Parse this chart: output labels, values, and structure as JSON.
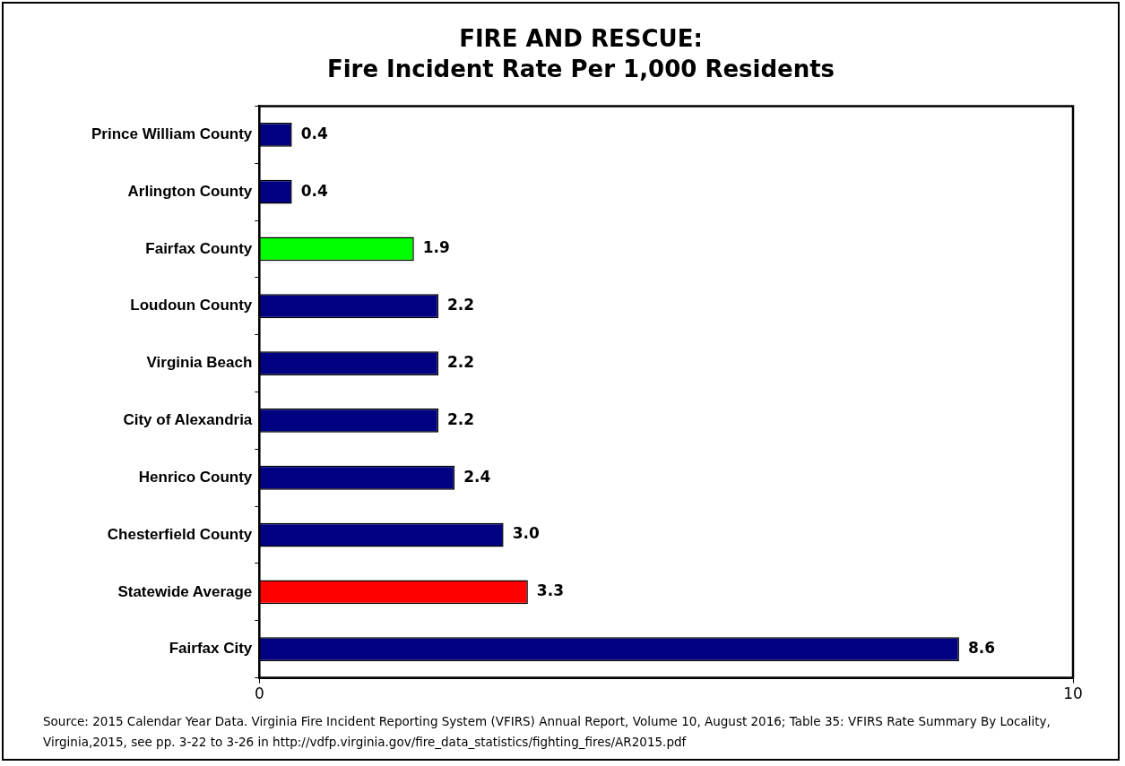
{
  "chart_data": {
    "type": "bar",
    "orientation": "horizontal",
    "title": "FIRE AND RESCUE:",
    "subtitle": "Fire Incident Rate Per 1,000 Residents",
    "categories": [
      "Prince William County",
      "Arlington County",
      "Fairfax County",
      "Loudoun County",
      "Virginia Beach",
      "City of Alexandria",
      "Henrico County",
      "Chesterfield County",
      "Statewide Average",
      "Fairfax City"
    ],
    "values": [
      0.4,
      0.4,
      1.9,
      2.2,
      2.2,
      2.2,
      2.4,
      3.0,
      3.3,
      8.6
    ],
    "colors": [
      "#000080",
      "#000080",
      "#00ff00",
      "#000080",
      "#000080",
      "#000080",
      "#000080",
      "#000080",
      "#ff0000",
      "#000080"
    ],
    "value_labels": [
      "0.4",
      "0.4",
      "1.9",
      "2.2",
      "2.2",
      "2.2",
      "2.4",
      "3.0",
      "3.3",
      "8.6"
    ],
    "xlim": [
      0,
      10
    ],
    "xticks": [
      0,
      10
    ],
    "grid": false,
    "legend": false,
    "annotations": [
      "Source: 2015 Calendar Year Data.  Virginia Fire Incident Reporting System (VFIRS) Annual Report, Volume 10, August 2016; Table 35: VFIRS Rate Summary By Locality, Virginia,2015, see pp. 3-22 to 3-26 in http://vdfp.virginia.gov/fire_data_statistics/fighting_fires/AR2015.pdf"
    ]
  }
}
